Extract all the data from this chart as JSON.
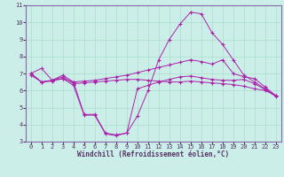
{
  "xlabel": "Windchill (Refroidissement éolien,°C)",
  "ylabel": "",
  "bg_color": "#cceee8",
  "grid_color": "#aaddcc",
  "line_color": "#aa22aa",
  "ylim": [
    3,
    11
  ],
  "xlim": [
    -0.5,
    23.5
  ],
  "yticks": [
    3,
    4,
    5,
    6,
    7,
    8,
    9,
    10,
    11
  ],
  "xticks": [
    0,
    1,
    2,
    3,
    4,
    5,
    6,
    7,
    8,
    9,
    10,
    11,
    12,
    13,
    14,
    15,
    16,
    17,
    18,
    19,
    20,
    21,
    22,
    23
  ],
  "lines": [
    {
      "x": [
        0,
        1,
        2,
        3,
        4,
        5,
        6,
        7,
        8,
        9,
        10,
        11,
        12,
        13,
        14,
        15,
        16,
        17,
        18,
        19,
        20,
        21,
        22,
        23
      ],
      "y": [
        7.0,
        7.3,
        6.6,
        6.9,
        6.5,
        4.6,
        4.6,
        3.5,
        3.4,
        3.5,
        4.5,
        6.0,
        7.8,
        9.0,
        9.9,
        10.6,
        10.5,
        9.4,
        8.7,
        7.8,
        6.9,
        6.5,
        6.1,
        5.7
      ]
    },
    {
      "x": [
        0,
        1,
        2,
        3,
        4,
        5,
        6,
        7,
        8,
        9,
        10,
        11,
        12,
        13,
        14,
        15,
        16,
        17,
        18,
        19,
        20,
        21,
        22,
        23
      ],
      "y": [
        7.0,
        6.5,
        6.6,
        6.7,
        6.5,
        6.55,
        6.6,
        6.7,
        6.8,
        6.9,
        7.05,
        7.2,
        7.35,
        7.5,
        7.65,
        7.8,
        7.7,
        7.55,
        7.8,
        7.0,
        6.8,
        6.7,
        6.2,
        5.7
      ]
    },
    {
      "x": [
        0,
        1,
        2,
        3,
        4,
        5,
        6,
        7,
        8,
        9,
        10,
        11,
        12,
        13,
        14,
        15,
        16,
        17,
        18,
        19,
        20,
        21,
        22,
        23
      ],
      "y": [
        7.0,
        6.5,
        6.6,
        6.8,
        6.4,
        6.45,
        6.5,
        6.55,
        6.6,
        6.65,
        6.65,
        6.6,
        6.55,
        6.5,
        6.5,
        6.55,
        6.5,
        6.45,
        6.4,
        6.35,
        6.25,
        6.1,
        6.0,
        5.7
      ]
    },
    {
      "x": [
        0,
        1,
        2,
        3,
        4,
        5,
        6,
        7,
        8,
        9,
        10,
        11,
        12,
        13,
        14,
        15,
        16,
        17,
        18,
        19,
        20,
        21,
        22,
        23
      ],
      "y": [
        6.9,
        6.5,
        6.55,
        6.7,
        6.3,
        4.55,
        4.55,
        3.45,
        3.35,
        3.5,
        6.1,
        6.3,
        6.5,
        6.65,
        6.8,
        6.85,
        6.75,
        6.65,
        6.6,
        6.6,
        6.65,
        6.4,
        6.05,
        5.65
      ]
    }
  ],
  "tick_fontsize": 5,
  "xlabel_fontsize": 5.5,
  "tick_color": "#553366",
  "spine_color": "#8866aa"
}
